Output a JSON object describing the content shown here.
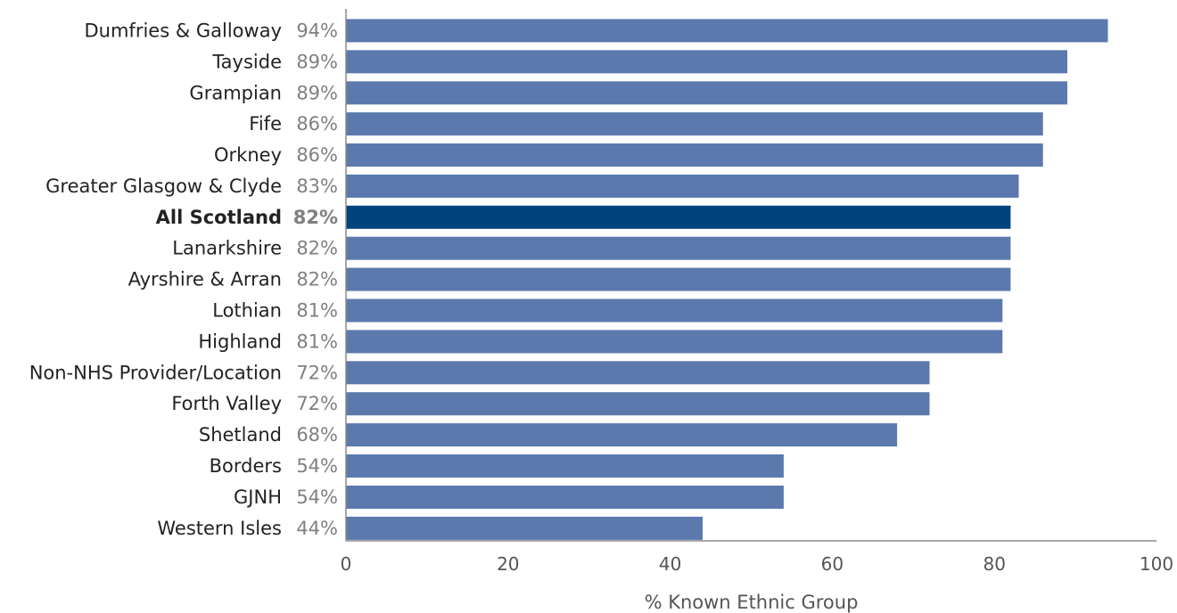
{
  "chart_data": {
    "type": "bar",
    "orientation": "horizontal",
    "categories": [
      "Dumfries & Galloway",
      "Tayside",
      "Grampian",
      "Fife",
      "Orkney",
      "Greater Glasgow & Clyde",
      "All Scotland",
      "Lanarkshire",
      "Ayrshire & Arran",
      "Lothian",
      "Highland",
      "Non-NHS Provider/Location",
      "Forth Valley",
      "Shetland",
      "Borders",
      "GJNH",
      "Western Isles"
    ],
    "values": [
      94,
      89,
      89,
      86,
      86,
      83,
      82,
      82,
      82,
      81,
      81,
      72,
      72,
      68,
      54,
      54,
      44
    ],
    "value_labels": [
      "94%",
      "89%",
      "89%",
      "86%",
      "86%",
      "83%",
      "82%",
      "82%",
      "82%",
      "81%",
      "81%",
      "72%",
      "72%",
      "68%",
      "54%",
      "54%",
      "44%"
    ],
    "highlight_category": "All Scotland",
    "xlabel": "% Known Ethnic Group",
    "xlim": [
      0,
      100
    ],
    "xticks": [
      0,
      20,
      40,
      60,
      80,
      100
    ],
    "grid": false,
    "colors": {
      "bar": "#5b79ad",
      "highlight": "#00437e"
    }
  }
}
